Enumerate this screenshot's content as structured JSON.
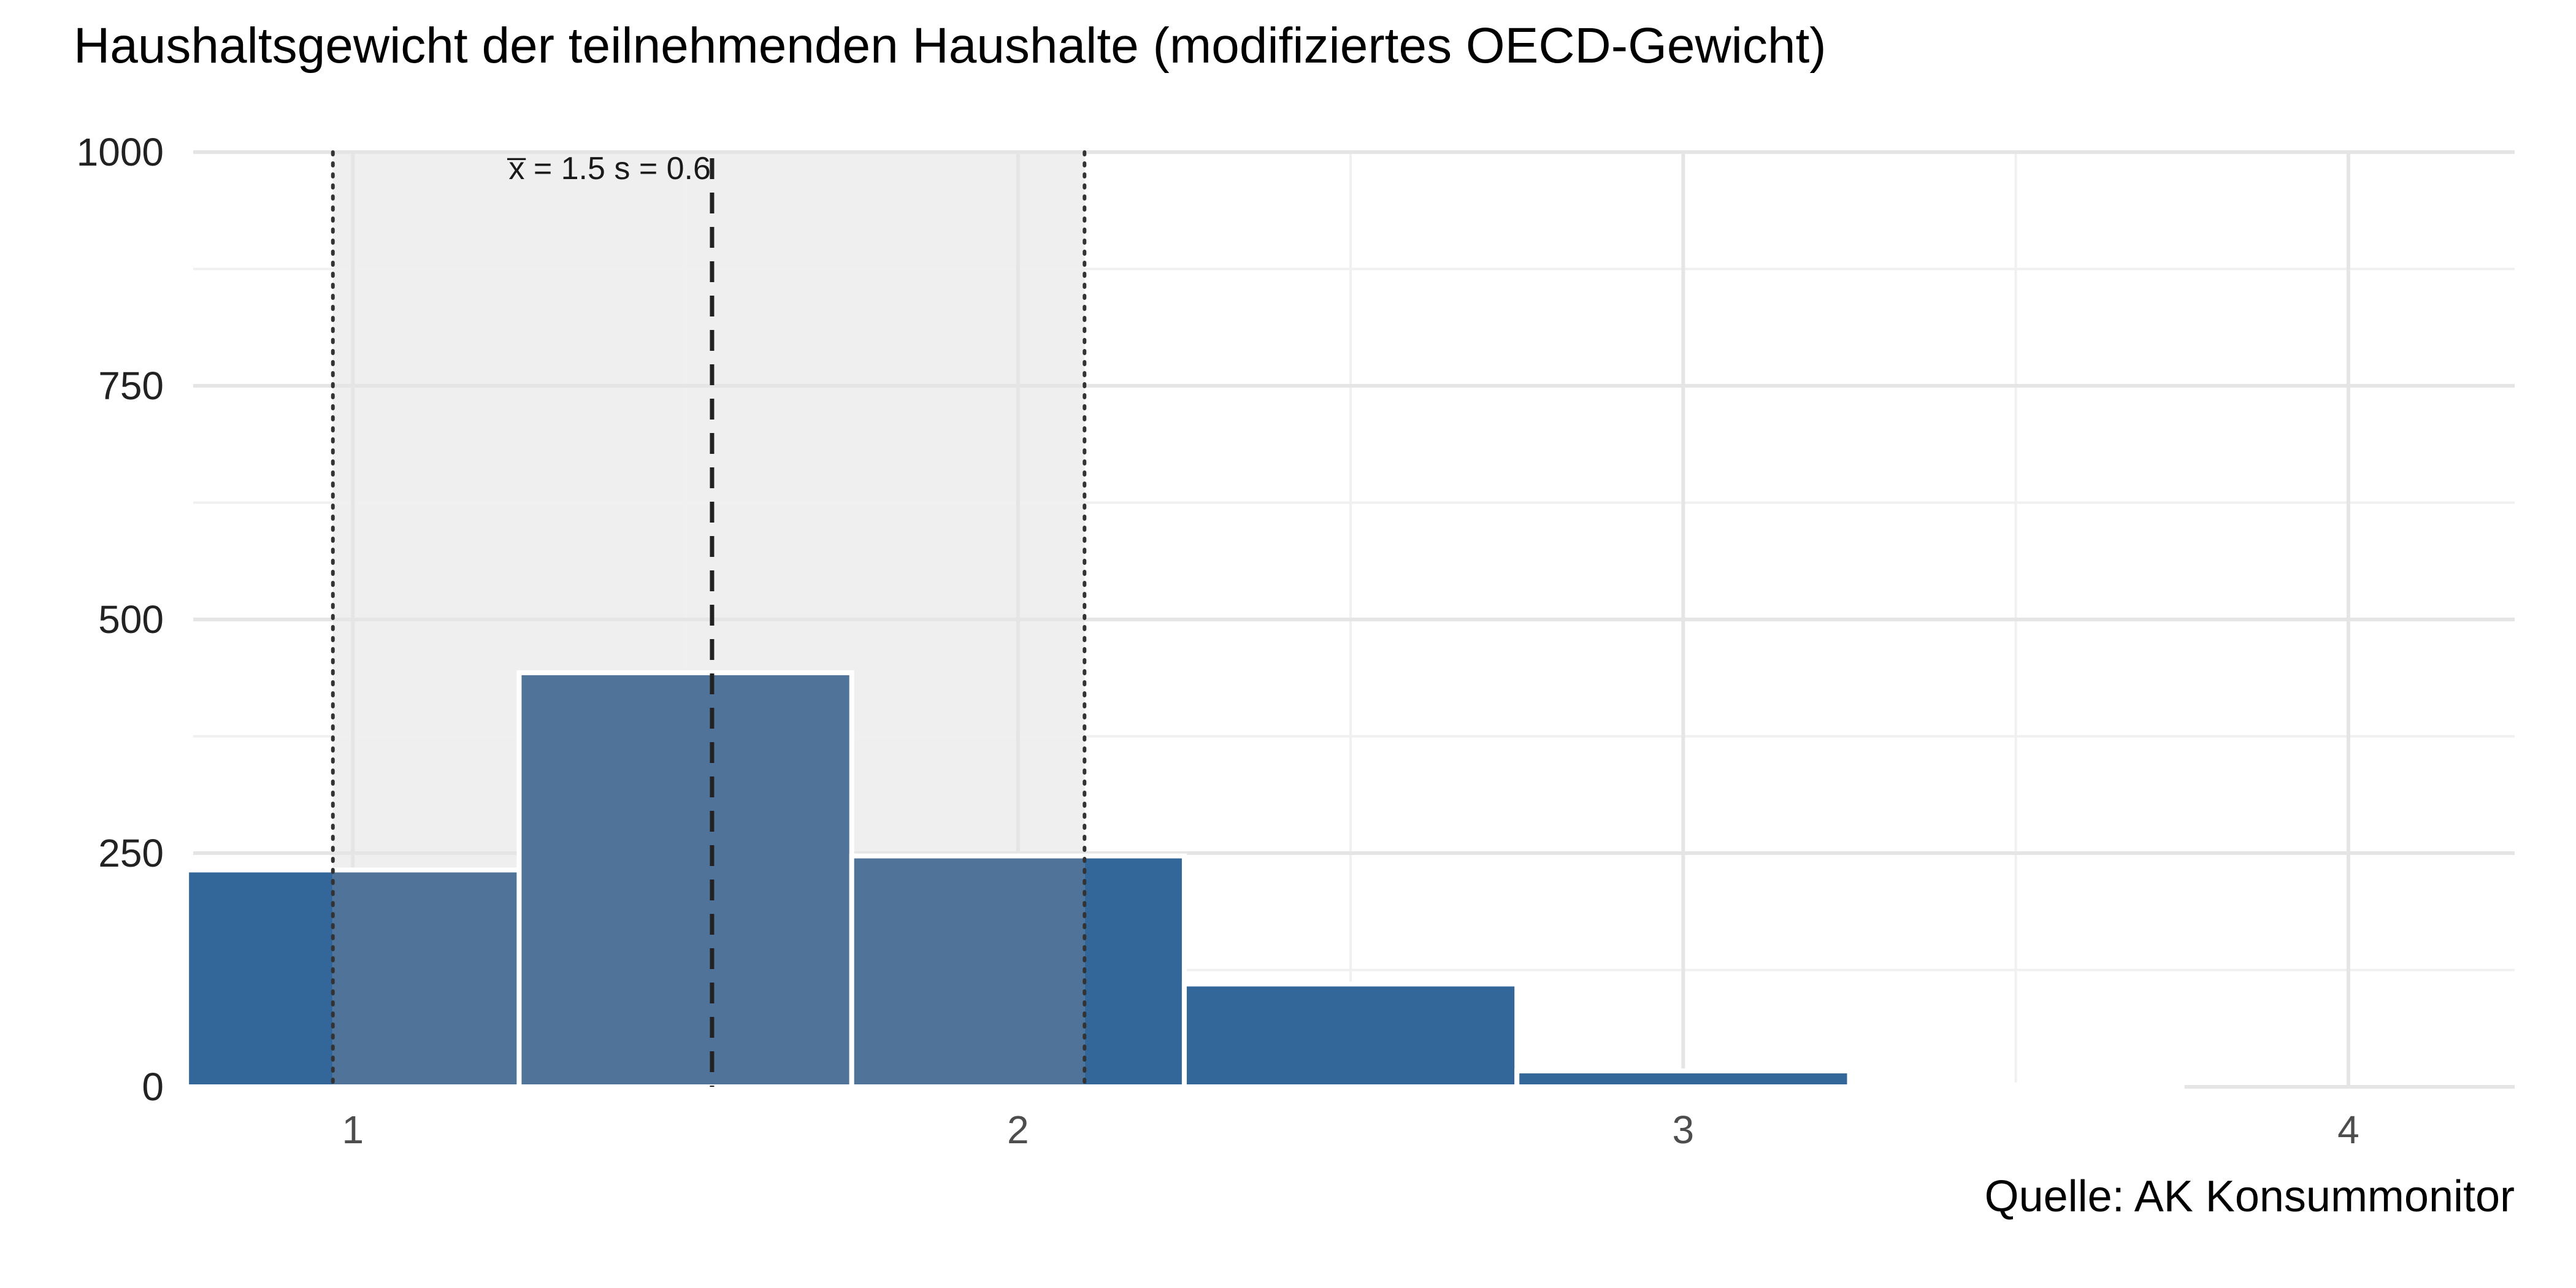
{
  "chart_data": {
    "type": "bar",
    "title": "Haushaltsgewicht der teilnehmenden Haushalte (modifiziertes OECD-Gewicht)",
    "caption": "Quelle: AK Konsummonitor",
    "xlabel": "",
    "ylabel": "",
    "xlim": [
      0.76,
      4.25
    ],
    "ylim": [
      0,
      1000
    ],
    "x_ticks": [
      1,
      2,
      3,
      4
    ],
    "y_ticks": [
      0,
      250,
      500,
      750,
      1000
    ],
    "bin_width": 0.5,
    "bins": [
      {
        "center": 1.0,
        "count": 232
      },
      {
        "center": 1.5,
        "count": 443
      },
      {
        "center": 2.0,
        "count": 247
      },
      {
        "center": 2.5,
        "count": 110
      },
      {
        "center": 3.0,
        "count": 17
      },
      {
        "center": 3.5,
        "count": 2
      }
    ],
    "stats": {
      "mean": 1.5,
      "sd": 0.6,
      "mean_line_x": 1.54,
      "sd_band": [
        0.97,
        2.1
      ],
      "label": "x̅ = 1.5  s = 0.6"
    },
    "grid": true,
    "legend": "none",
    "colors": {
      "bar": "#336699",
      "bar_in_band": "#4f7399",
      "band": "#efefef",
      "grid_major": "#e5e5e5",
      "grid_minor": "#f0f0f0",
      "mean_line": "#222222",
      "sd_line": "#333333",
      "bar_outline": "#ffffff"
    }
  }
}
